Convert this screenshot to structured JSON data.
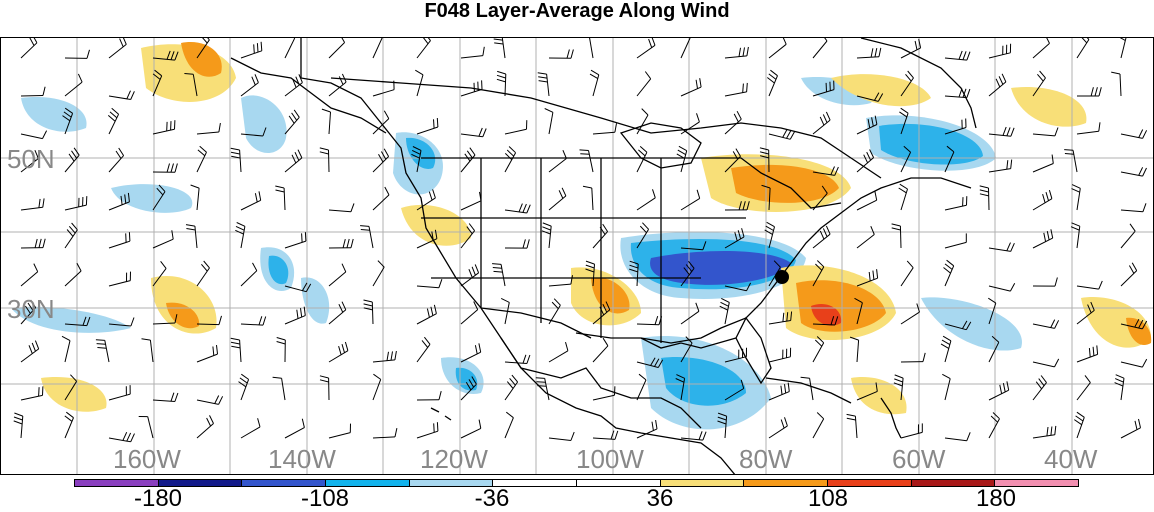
{
  "title": "F048 Layer-Average Along Wind",
  "lat_labels": [
    "50N",
    "30N"
  ],
  "lon_labels": [
    "160W",
    "140W",
    "120W",
    "100W",
    "80W",
    "60W",
    "40W"
  ],
  "colorbar": {
    "labels": [
      "-180",
      "-108",
      "-36",
      "36",
      "108",
      "180"
    ],
    "colors": [
      "#8a3fbf",
      "#121a8a",
      "#3355cc",
      "#12b3ec",
      "#a8d8f0",
      "#ffffff",
      "#ffffff",
      "#f8df78",
      "#f59a1a",
      "#e8401a",
      "#a81818",
      "#f28fb0"
    ]
  },
  "palette": {
    "light_blue": "#a8d8f0",
    "medium_blue": "#2db2ea",
    "dark_blue": "#3355cc",
    "yellow": "#f8df78",
    "orange": "#f59a1a",
    "red": "#e8401a",
    "grid": "#b0b0b0",
    "coast": "#000000"
  },
  "marker": "storm-center-dot"
}
